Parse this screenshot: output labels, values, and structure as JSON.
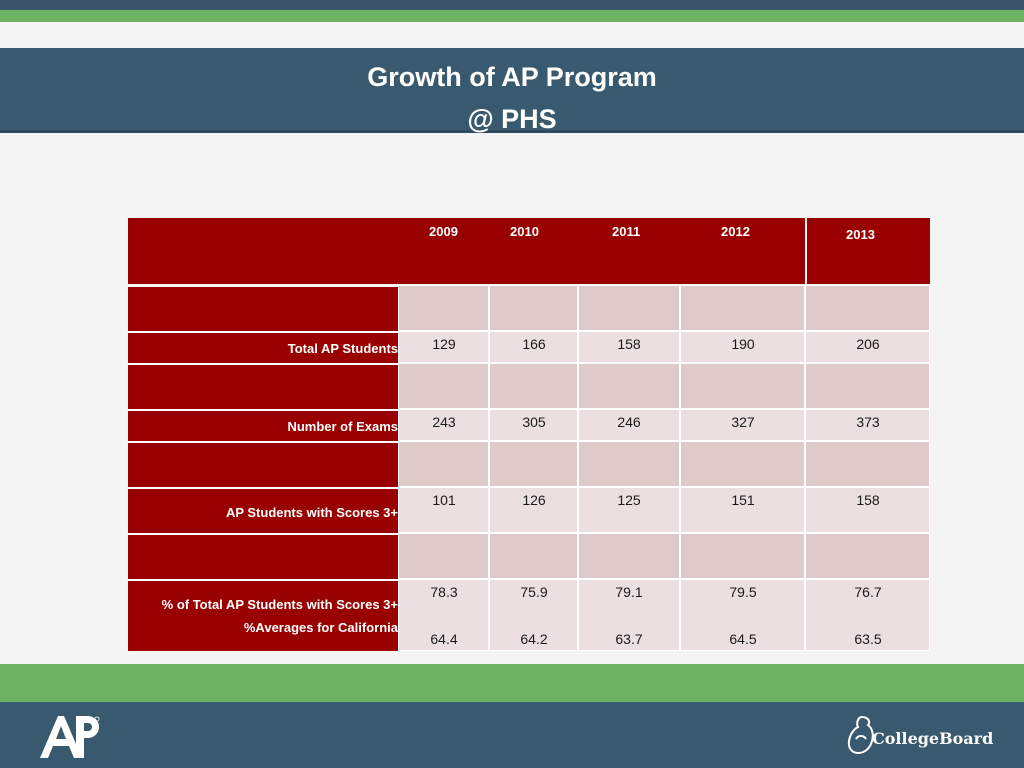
{
  "slide": {
    "title_line1": "Growth of AP Program",
    "title_line2": "@ PHS"
  },
  "table": {
    "years": [
      "2009",
      "2010",
      "2011",
      "2012",
      "2013"
    ],
    "rows": [
      {
        "label": "Total AP Students",
        "values": [
          "129",
          "166",
          "158",
          "190",
          "206"
        ]
      },
      {
        "label": "Number of Exams",
        "values": [
          "243",
          "305",
          "246",
          "327",
          "373"
        ]
      },
      {
        "label": "AP Students with Scores 3+",
        "values": [
          "101",
          "126",
          "125",
          "151",
          "158"
        ]
      },
      {
        "label": "% of Total AP Students with Scores 3+",
        "values": [
          "78.3",
          "75.9",
          "79.1",
          "79.5",
          "76.7"
        ]
      },
      {
        "label": "%Averages for California",
        "values": [
          "64.4",
          "64.2",
          "63.7",
          "64.5",
          "63.5"
        ]
      }
    ]
  },
  "footer": {
    "left_logo_text": "AP",
    "right_logo_text": "CollegeBoard"
  },
  "colors": {
    "header_red": "#990000",
    "band_blue": "#395a6e",
    "band_green": "#6cb464"
  }
}
